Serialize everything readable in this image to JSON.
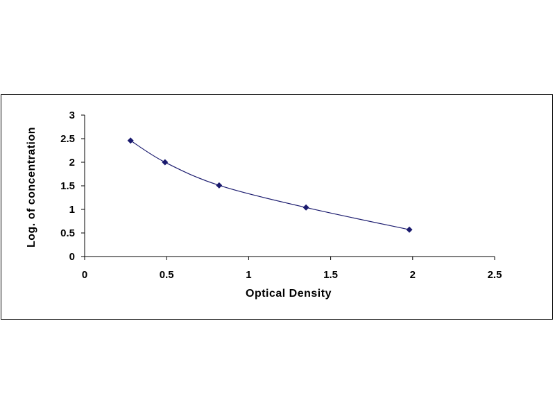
{
  "chart_data": {
    "type": "scatter",
    "title": "",
    "xlabel": "Optical Density",
    "ylabel": "Log. of concentration",
    "xlim": [
      0,
      2.5
    ],
    "ylim": [
      0,
      3
    ],
    "x_ticks": [
      "0",
      "0.5",
      "1",
      "1.5",
      "2",
      "2.5"
    ],
    "y_ticks": [
      "0",
      "0.5",
      "1",
      "1.5",
      "2",
      "2.5",
      "3"
    ],
    "grid": false,
    "legend": "none",
    "series": [
      {
        "x": [
          0.28,
          0.49,
          0.82,
          1.35,
          1.98
        ],
        "y": [
          2.46,
          2.0,
          1.51,
          1.04,
          0.57
        ],
        "marker": "diamond",
        "line": "smooth",
        "color": "#1a1a6e"
      }
    ]
  }
}
